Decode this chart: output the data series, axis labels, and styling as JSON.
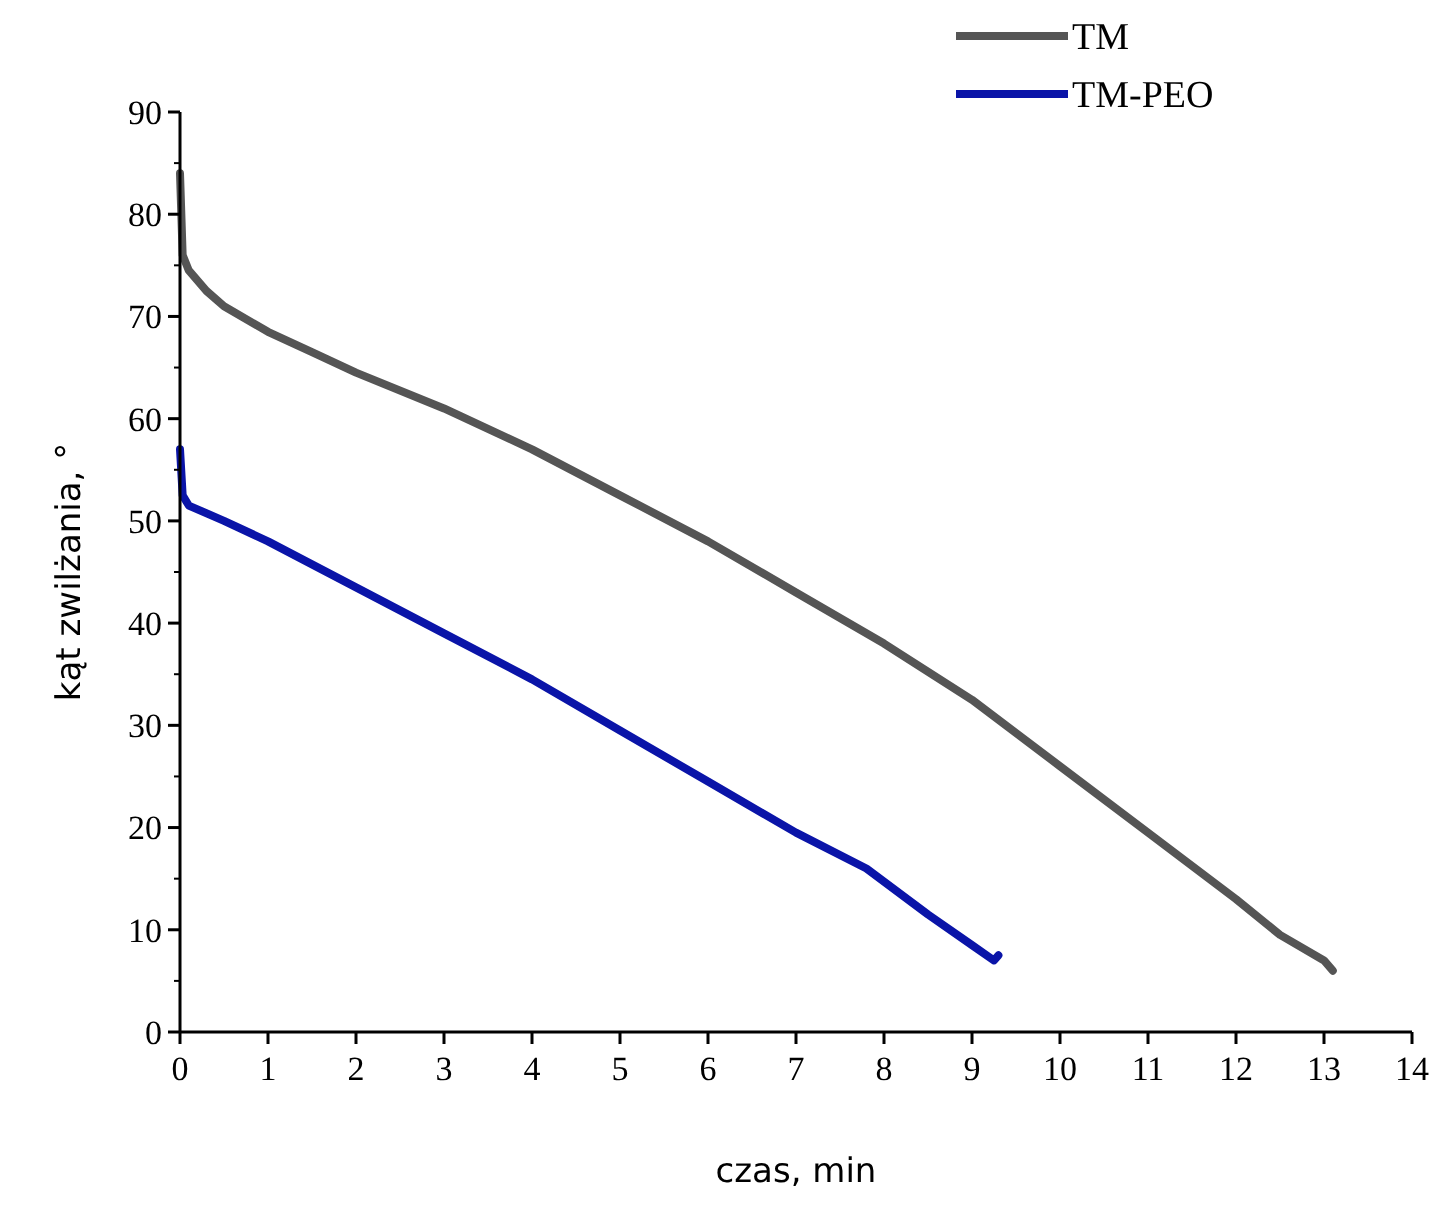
{
  "chart_data": {
    "type": "line",
    "xlabel": "czas, min",
    "ylabel": "kąt zwilżania, °",
    "xlim": [
      0,
      14
    ],
    "ylim": [
      0,
      90
    ],
    "xticks": [
      0,
      1,
      2,
      3,
      4,
      5,
      6,
      7,
      8,
      9,
      10,
      11,
      12,
      13,
      14
    ],
    "yticks": [
      0,
      10,
      20,
      30,
      40,
      50,
      60,
      70,
      80,
      90
    ],
    "legend": "top right",
    "grid": false,
    "line_style": "solid",
    "series": [
      {
        "name": "TM",
        "color": "#555555",
        "x": [
          0,
          0.03,
          0.1,
          0.3,
          0.5,
          1,
          1.5,
          2,
          3,
          4,
          5,
          6,
          7,
          8,
          9,
          10,
          11,
          12,
          12.5,
          13,
          13.1
        ],
        "values": [
          84,
          76,
          74.5,
          72.5,
          71,
          68.5,
          66.5,
          64.5,
          61,
          57,
          52.5,
          48,
          43,
          38,
          32.5,
          26,
          19.5,
          13,
          9.5,
          7,
          6
        ]
      },
      {
        "name": "TM-PEO",
        "color": "#0a14a8",
        "x": [
          0,
          0.03,
          0.1,
          0.5,
          1,
          2,
          3,
          4,
          5,
          6,
          7,
          7.8,
          8.5,
          9,
          9.25,
          9.3
        ],
        "values": [
          57,
          52.5,
          51.5,
          50,
          48,
          43.5,
          39,
          34.5,
          29.5,
          24.5,
          19.5,
          16,
          11.5,
          8.5,
          7,
          7.5
        ]
      }
    ]
  }
}
